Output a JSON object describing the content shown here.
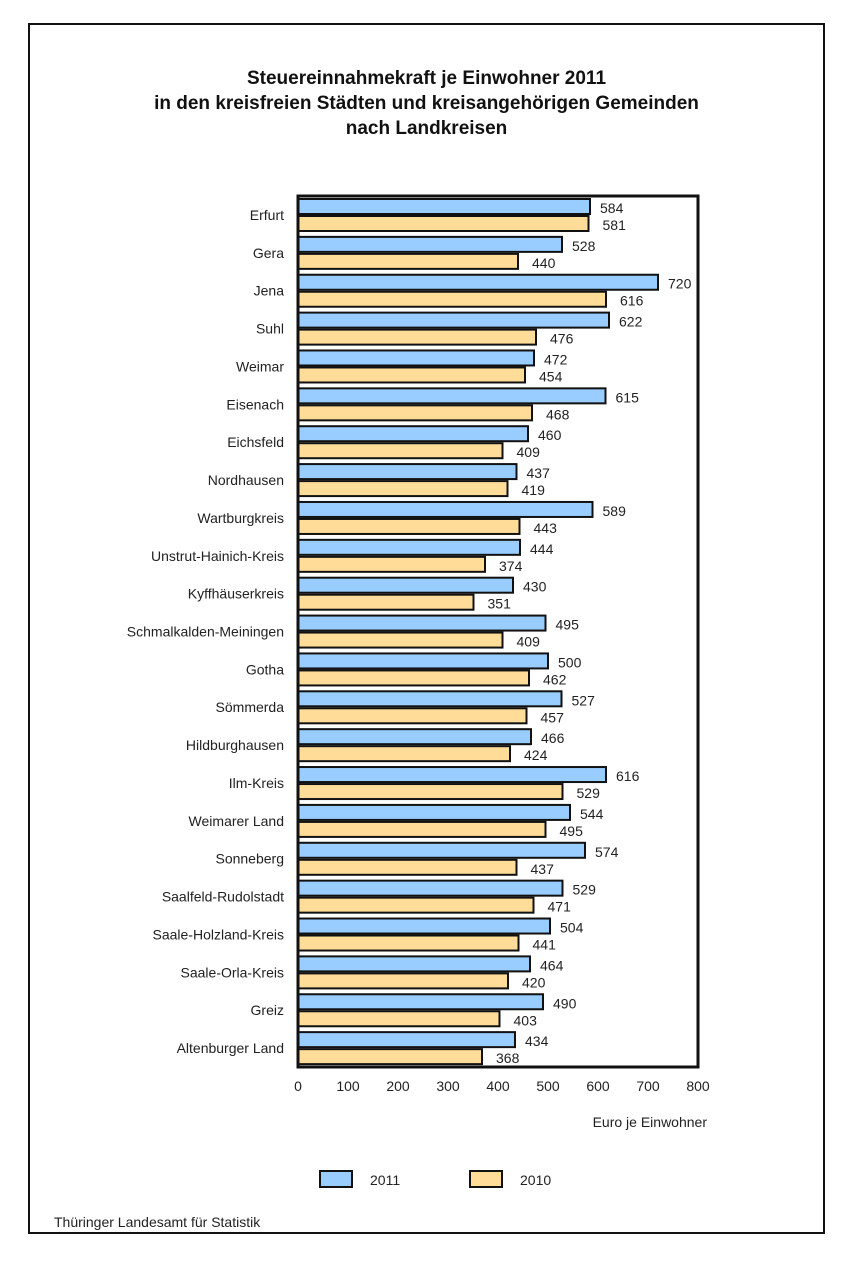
{
  "title": {
    "line1": "Steuereinnahmekraft je Einwohner 2011",
    "line2": "in den kreisfreien Städten und kreisangehörigen Gemeinden",
    "line3": "nach Landkreisen"
  },
  "source": "Thüringer Landesamt für Statistik",
  "colors": {
    "series_2011": "#99ccff",
    "series_2010": "#ffdd99",
    "outline": "#111111"
  },
  "chart_data": {
    "type": "bar",
    "orientation": "horizontal",
    "title": "Steuereinnahmekraft je Einwohner 2011 in den kreisfreien Städten und kreisangehörigen Gemeinden nach Landkreisen",
    "xlabel": "Euro je Einwohner",
    "ylabel": "",
    "xlim": [
      0,
      800
    ],
    "xticks": [
      0,
      100,
      200,
      300,
      400,
      500,
      600,
      700,
      800
    ],
    "grid": false,
    "legend_position": "bottom",
    "categories": [
      "Erfurt",
      "Gera",
      "Jena",
      "Suhl",
      "Weimar",
      "Eisenach",
      "Eichsfeld",
      "Nordhausen",
      "Wartburgkreis",
      "Unstrut-Hainich-Kreis",
      "Kyffhäuserkreis",
      "Schmalkalden-Meiningen",
      "Gotha",
      "Sömmerda",
      "Hildburghausen",
      "Ilm-Kreis",
      "Weimarer Land",
      "Sonneberg",
      "Saalfeld-Rudolstadt",
      "Saale-Holzland-Kreis",
      "Saale-Orla-Kreis",
      "Greiz",
      "Altenburger Land"
    ],
    "series": [
      {
        "name": "2011",
        "values": [
          584,
          528,
          720,
          622,
          472,
          615,
          460,
          437,
          589,
          444,
          430,
          495,
          500,
          527,
          466,
          616,
          544,
          574,
          529,
          504,
          464,
          490,
          434
        ]
      },
      {
        "name": "2010",
        "values": [
          581,
          440,
          616,
          476,
          454,
          468,
          409,
          419,
          443,
          374,
          351,
          409,
          462,
          457,
          424,
          529,
          495,
          437,
          471,
          441,
          420,
          403,
          368
        ]
      }
    ]
  }
}
